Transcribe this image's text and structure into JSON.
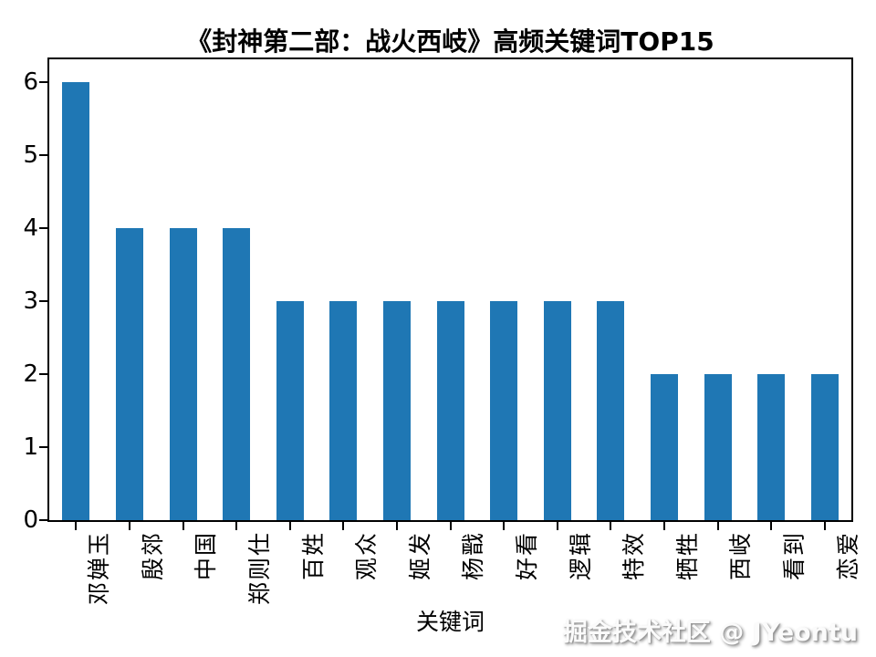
{
  "title": "《封神第二部：战火西岐》高频关键词TOP15",
  "watermark": "掘金技术社区 @ JYeontu",
  "colors": {
    "bar": "#1f77b4",
    "axis": "#000000",
    "background": "#ffffff",
    "text": "#000000"
  },
  "chart_data": {
    "type": "bar",
    "title": "《封神第二部：战火西岐》高频关键词TOP15",
    "categories": [
      "邓婵玉",
      "殷郊",
      "中国",
      "郑则仕",
      "百姓",
      "观众",
      "姬发",
      "杨戬",
      "好看",
      "逻辑",
      "特效",
      "牺牲",
      "西岐",
      "看到",
      "恋爱"
    ],
    "values": [
      6,
      4,
      4,
      4,
      3,
      3,
      3,
      3,
      3,
      3,
      3,
      2,
      2,
      2,
      2
    ],
    "xlabel": "关键词",
    "ylabel": "",
    "ylim": [
      0,
      6.31
    ],
    "yticks": [
      0,
      1,
      2,
      3,
      4,
      5,
      6
    ],
    "xtick_rotation": 90,
    "grid": false,
    "legend_position": "none",
    "bar_color": "#1f77b4"
  }
}
